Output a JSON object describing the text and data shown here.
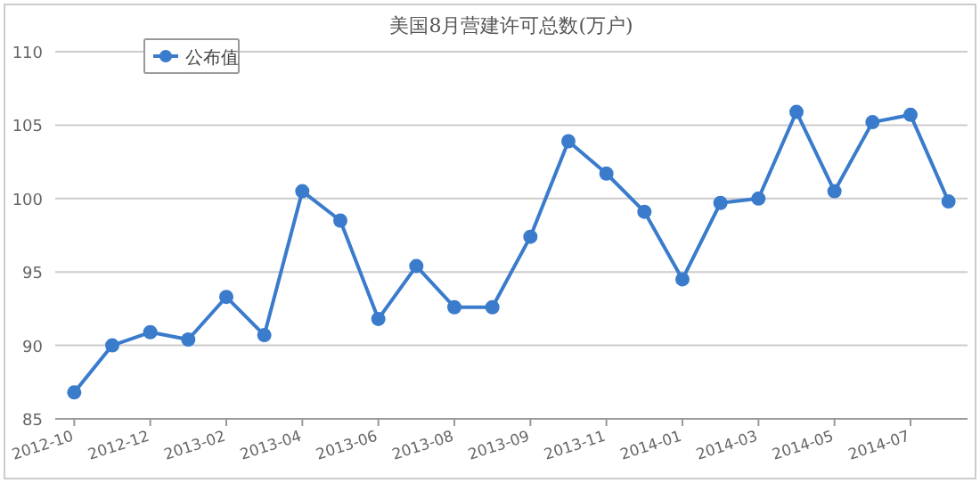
{
  "chart_data": {
    "type": "line",
    "title": "美国8月营建许可总数(万户)",
    "categories": [
      "2012-10",
      null,
      "2012-12",
      null,
      "2013-02",
      null,
      "2013-04",
      null,
      "2013-06",
      null,
      "2013-08",
      null,
      "2013-09",
      null,
      "2013-11",
      null,
      "2014-01",
      null,
      "2014-03",
      null,
      "2014-05",
      null,
      "2014-07",
      null
    ],
    "series": [
      {
        "name": "公布值",
        "color": "#3a7bcc",
        "values": [
          86.8,
          90.0,
          90.9,
          90.4,
          93.3,
          90.7,
          100.5,
          98.5,
          91.8,
          95.4,
          92.6,
          92.6,
          97.4,
          103.9,
          101.7,
          99.1,
          94.5,
          99.7,
          100.0,
          105.9,
          100.5,
          105.2,
          105.7,
          99.8
        ]
      }
    ],
    "ylim": [
      85,
      110
    ],
    "yticks": [
      85,
      90,
      95,
      100,
      105,
      110
    ],
    "grid": "y",
    "legend": "top left",
    "marker": "circle",
    "line_style": "solid"
  }
}
